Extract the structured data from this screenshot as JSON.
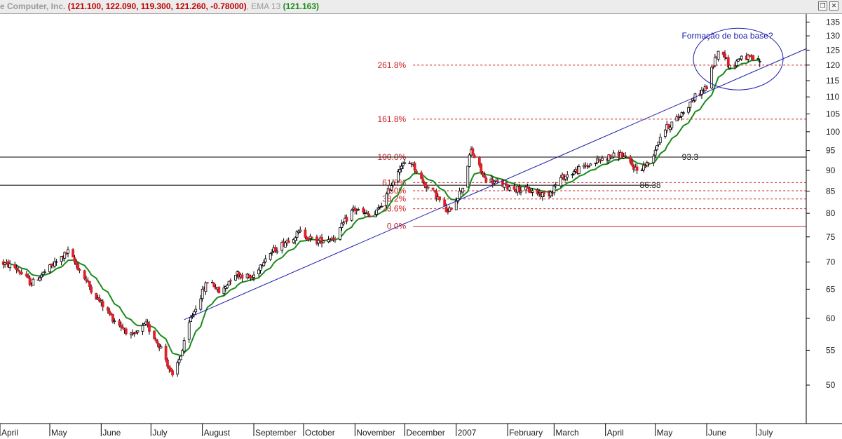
{
  "title_bar": {
    "name": "e Computer, Inc.",
    "ohlc": "(121.100, 122.090, 119.300, 121.260, -0.78000)",
    "ema_label": "EMA 13",
    "ema_value": "(121.163)",
    "restore_icon": "restore-window-icon",
    "close_icon": "close-window-icon"
  },
  "colors": {
    "up_candle": "#ffffff",
    "down_candle": "#e0202a",
    "candle_outline": "#000000",
    "ema": "#1a8a1a",
    "trendline": "#1a1aaa",
    "fib": "#cc2222",
    "annotation": "#1a1aaa"
  },
  "chart_data": {
    "type": "candlestick",
    "title": "",
    "y_axis": {
      "ylim": [
        45,
        138
      ],
      "ticks": [
        50,
        55,
        60,
        65,
        70,
        75,
        80,
        85,
        90,
        95,
        100,
        105,
        110,
        115,
        120,
        125,
        130,
        135
      ],
      "scale": "log",
      "position": "right"
    },
    "x_axis": {
      "start": "2006-04-01",
      "end": "2007-07-31",
      "month_labels": [
        "April",
        "May",
        "June",
        "July",
        "August",
        "September",
        "October",
        "November",
        "December",
        "2007",
        "February",
        "March",
        "April",
        "May",
        "June",
        "July"
      ],
      "month_dates": [
        "2006-04-01",
        "2006-05-01",
        "2006-06-01",
        "2006-07-01",
        "2006-08-01",
        "2006-09-01",
        "2006-10-01",
        "2006-11-01",
        "2006-12-01",
        "2007-01-01",
        "2007-02-01",
        "2007-03-01",
        "2007-04-01",
        "2007-05-01",
        "2007-06-01",
        "2007-07-01"
      ]
    },
    "price_anchors": [
      [
        "2006-04-01",
        70
      ],
      [
        "2006-04-10",
        69
      ],
      [
        "2006-04-20",
        66
      ],
      [
        "2006-05-05",
        70
      ],
      [
        "2006-05-12",
        72
      ],
      [
        "2006-05-20",
        68
      ],
      [
        "2006-05-28",
        64
      ],
      [
        "2006-06-08",
        60
      ],
      [
        "2006-06-20",
        57
      ],
      [
        "2006-06-28",
        59
      ],
      [
        "2006-07-08",
        55
      ],
      [
        "2006-07-14",
        51
      ],
      [
        "2006-07-20",
        55
      ],
      [
        "2006-07-25",
        60
      ],
      [
        "2006-08-05",
        67
      ],
      [
        "2006-08-12",
        64
      ],
      [
        "2006-08-20",
        68
      ],
      [
        "2006-08-31",
        67
      ],
      [
        "2006-09-08",
        71
      ],
      [
        "2006-09-20",
        74
      ],
      [
        "2006-09-29",
        76
      ],
      [
        "2006-10-08",
        74
      ],
      [
        "2006-10-20",
        75
      ],
      [
        "2006-10-31",
        81
      ],
      [
        "2006-11-12",
        79
      ],
      [
        "2006-11-20",
        84
      ],
      [
        "2006-11-28",
        91
      ],
      [
        "2006-12-05",
        92
      ],
      [
        "2006-12-12",
        87
      ],
      [
        "2006-12-20",
        84
      ],
      [
        "2006-12-27",
        80
      ],
      [
        "2007-01-05",
        86
      ],
      [
        "2007-01-10",
        95
      ],
      [
        "2007-01-18",
        88
      ],
      [
        "2007-02-01",
        86
      ],
      [
        "2007-02-15",
        85
      ],
      [
        "2007-02-25",
        84
      ],
      [
        "2007-03-05",
        88
      ],
      [
        "2007-03-20",
        91
      ],
      [
        "2007-03-31",
        93
      ],
      [
        "2007-04-10",
        94
      ],
      [
        "2007-04-20",
        90
      ],
      [
        "2007-04-28",
        92
      ],
      [
        "2007-05-05",
        100
      ],
      [
        "2007-05-15",
        104
      ],
      [
        "2007-05-25",
        110
      ],
      [
        "2007-06-01",
        113
      ],
      [
        "2007-06-06",
        122
      ],
      [
        "2007-06-10",
        126
      ],
      [
        "2007-06-15",
        119
      ],
      [
        "2007-06-22",
        123
      ],
      [
        "2007-06-28",
        122
      ],
      [
        "2007-07-03",
        121.26
      ]
    ],
    "ema_period": 13,
    "ema_last": 121.163,
    "last_candle": {
      "date": "2007-07-03",
      "open": 121.1,
      "high": 122.09,
      "low": 119.3,
      "close": 121.26,
      "change": -0.78
    },
    "fibonacci": {
      "levels": [
        {
          "label": "0.0%",
          "value": 77.2
        },
        {
          "label": "23.6%",
          "value": 81.0
        },
        {
          "label": "38.2%",
          "value": 83.2
        },
        {
          "label": "50%",
          "value": 85.1
        },
        {
          "label": "61.8%",
          "value": 87.0
        },
        {
          "label": "100.0%",
          "value": 93.3
        },
        {
          "label": "161.8%",
          "value": 103.5
        },
        {
          "label": "261.8%",
          "value": 120.0
        }
      ],
      "start": "2006-12-06",
      "end": "2007-07-31"
    },
    "horizontal_lines": [
      {
        "value": 93.3,
        "label": "93.3",
        "start": "2006-04-01",
        "end": "2007-07-31",
        "label_date": "2007-05-22"
      },
      {
        "value": 86.38,
        "label": "86.38",
        "start": "2006-04-01",
        "end": "2007-05-01",
        "label_date": "2007-04-28"
      }
    ],
    "trendline": {
      "x1": "2006-07-21",
      "y1": 59.8,
      "x2": "2007-07-31",
      "y2": 125.5
    },
    "annotation": {
      "text": "Formação de boa base?",
      "date": "2007-05-17",
      "value": 130
    },
    "highlight_ellipse": {
      "center_date": "2007-06-20",
      "center_value": 122,
      "label": "base-highlight"
    }
  }
}
